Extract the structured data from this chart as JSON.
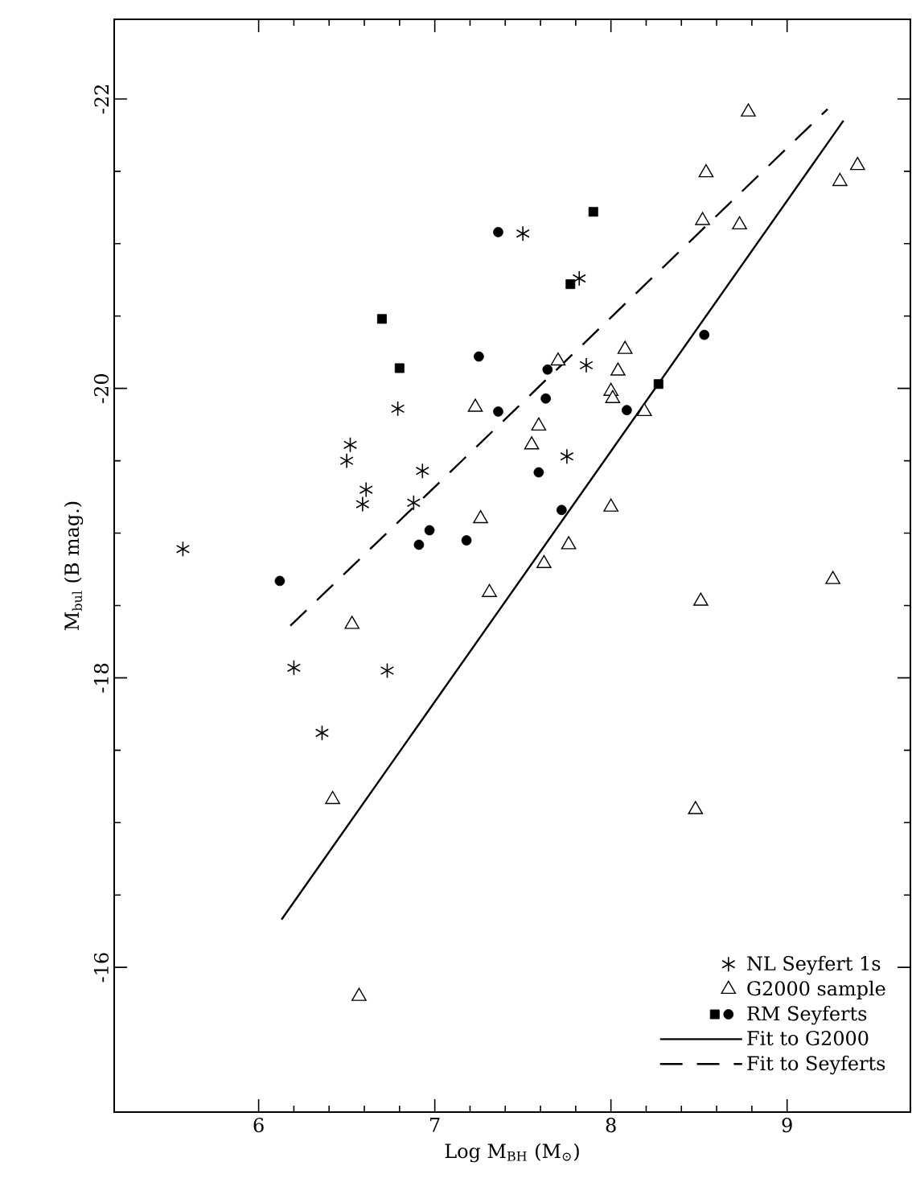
{
  "chart_data": {
    "type": "scatter",
    "xlabel": "Log M$_{BH}$ (M$_{⊙}$)",
    "ylabel": "M$_{bul}$ (B mag.)",
    "xlim": [
      5.18,
      9.7
    ],
    "ylim": [
      -15,
      -22.55
    ],
    "xticks": [
      6,
      7,
      8,
      9
    ],
    "yticks": [
      -22,
      -20,
      -18,
      -16
    ],
    "legend": "bottom right",
    "grid": false,
    "series": [
      {
        "name": "NL Seyfert 1s",
        "color": "#000000",
        "marker": "cross",
        "x": [
          5.57,
          6.2,
          6.36,
          6.5,
          6.52,
          6.59,
          6.61,
          6.73,
          6.79,
          6.88,
          6.93,
          7.5,
          7.75,
          7.82,
          7.86
        ],
        "values": [
          -18.89,
          -18.07,
          -17.62,
          -19.5,
          -19.61,
          -19.2,
          -19.3,
          -18.05,
          -19.86,
          -19.21,
          -19.43,
          -21.07,
          -19.53,
          -20.76,
          -20.16
        ]
      },
      {
        "name": "G2000 sample",
        "color": "#000000",
        "marker": "triangle",
        "x": [
          6.42,
          6.53,
          6.57,
          7.23,
          7.26,
          7.31,
          7.55,
          7.59,
          7.62,
          7.7,
          7.76,
          8.0,
          8.0,
          8.01,
          8.04,
          8.08,
          8.19,
          8.48,
          8.51,
          8.52,
          8.54,
          8.73,
          8.78,
          9.26,
          9.3,
          9.4
        ],
        "values": [
          -17.16,
          -18.37,
          -15.8,
          -19.87,
          -19.1,
          -18.59,
          -19.61,
          -19.74,
          -18.79,
          -20.19,
          -18.92,
          -19.18,
          -19.98,
          -19.93,
          -20.12,
          -20.27,
          -19.84,
          -17.09,
          -18.53,
          -21.16,
          -21.49,
          -21.13,
          -21.91,
          -18.68,
          -21.43,
          -21.54
        ]
      },
      {
        "name": "RM Seyferts",
        "color": "#000000",
        "marker": "circle",
        "x": [
          6.12,
          6.91,
          6.97,
          7.18,
          7.25,
          7.36,
          7.36,
          7.59,
          7.63,
          7.64,
          7.72,
          8.09,
          8.53
        ],
        "values": [
          -18.67,
          -18.92,
          -19.02,
          -18.95,
          -20.22,
          -21.08,
          -19.84,
          -19.42,
          -19.93,
          -20.13,
          -19.16,
          -19.85,
          -20.37
        ]
      },
      {
        "color": "#000000",
        "marker": "square",
        "x": [
          6.7,
          6.8,
          7.77,
          7.9,
          8.27
        ],
        "values": [
          -20.48,
          -20.14,
          -20.72,
          -21.22,
          -20.03
        ]
      },
      {
        "name": "Fit to G2000",
        "type": "line",
        "color": "#000000",
        "line_style": "solid",
        "x": [
          6.13,
          9.32
        ],
        "values": [
          -16.33,
          -21.85
        ]
      },
      {
        "name": "Fit to Seyferts",
        "type": "line",
        "color": "#000000",
        "line_style": "dashed",
        "x": [
          6.18,
          9.23
        ],
        "values": [
          -18.36,
          -21.93
        ]
      }
    ]
  }
}
